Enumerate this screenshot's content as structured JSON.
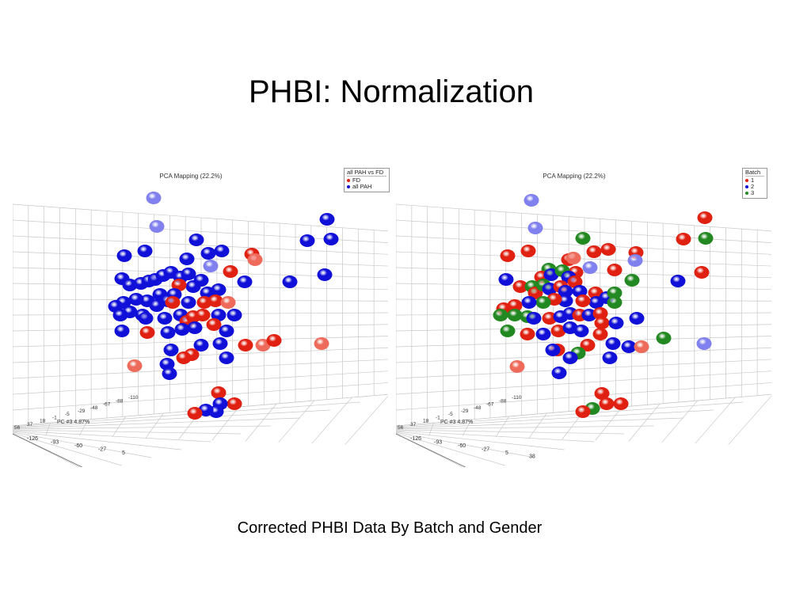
{
  "slide": {
    "title": "PHBI: Normalization",
    "caption": "Corrected PHBI Data By Batch and Gender"
  },
  "colors": {
    "red": "#e02010",
    "blue": "#1010d8",
    "green": "#228822",
    "light_blue": "#8080ee",
    "light_red": "#ee6a5a"
  },
  "chart_data": [
    {
      "type": "scatter",
      "title": "PCA Mapping (22.2%)",
      "legend": {
        "title": "all PAH vs FD",
        "placement": "top-right",
        "entries": [
          {
            "label": "FD",
            "color": "#e02010"
          },
          {
            "label": "all PAH",
            "color": "#1010d8"
          }
        ]
      },
      "xlabel": "PC #3 4.87%",
      "x_tick_labels": [
        "-126",
        "-93",
        "-60",
        "-27",
        "5"
      ],
      "z_tick_labels": [
        "56",
        "37",
        "18",
        "-1",
        "-5",
        "-29",
        "-48",
        "-67",
        "-88",
        "-110"
      ],
      "grid": true,
      "series": [
        {
          "name": "FD",
          "color": "#e02010"
        },
        {
          "name": "all PAH",
          "color": "#1010d8"
        }
      ]
    },
    {
      "type": "scatter",
      "title": "PCA Mapping (22.2%)",
      "legend": {
        "title": "Batch",
        "placement": "top-right",
        "entries": [
          {
            "label": "1",
            "color": "#e02010"
          },
          {
            "label": "2",
            "color": "#1010d8"
          },
          {
            "label": "3",
            "color": "#228822"
          }
        ]
      },
      "xlabel": "PC #3 4.87%",
      "x_tick_labels": [
        "-126",
        "-93",
        "-60",
        "-27",
        "5",
        "38"
      ],
      "z_tick_labels": [
        "56",
        "37",
        "18",
        "-1",
        "-5",
        "-29",
        "-48",
        "-67",
        "-88",
        "-110"
      ],
      "grid": true,
      "series": [
        {
          "name": "1",
          "color": "#e02010"
        },
        {
          "name": "2",
          "color": "#1010d8"
        },
        {
          "name": "3",
          "color": "#228822"
        }
      ]
    }
  ]
}
